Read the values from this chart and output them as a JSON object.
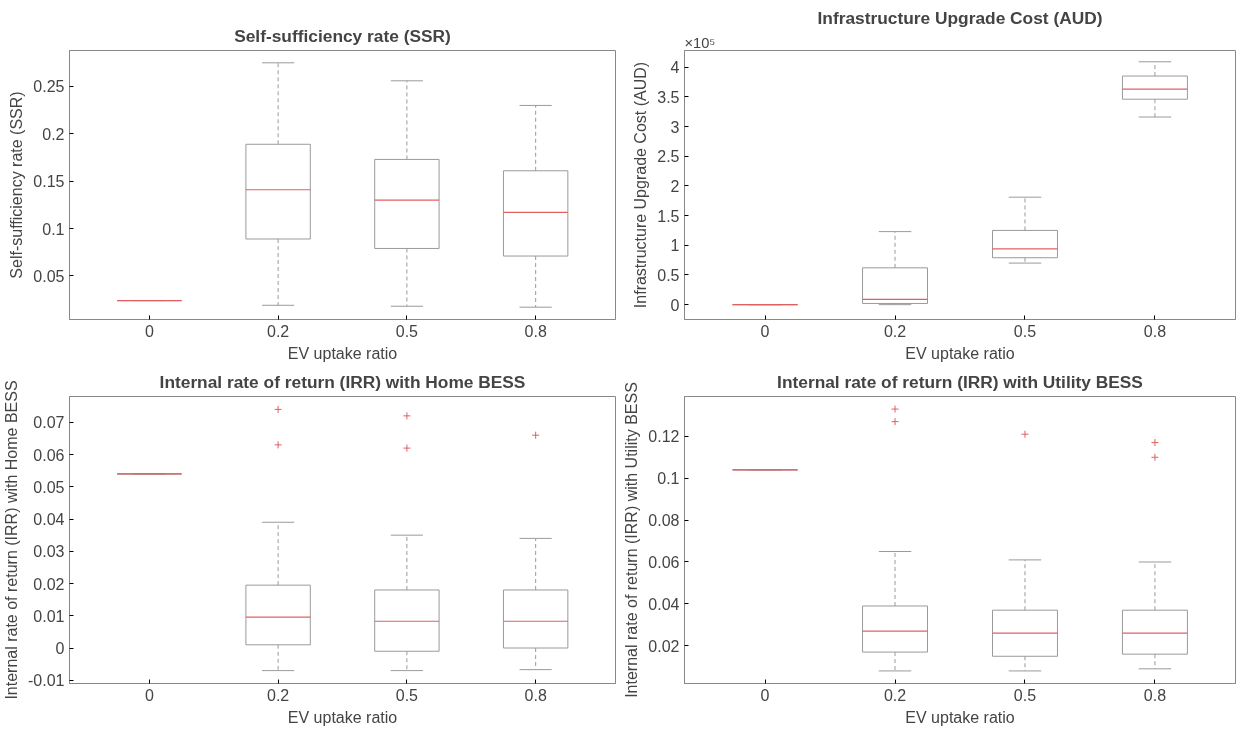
{
  "chart_data": [
    {
      "type": "box",
      "title": "Self-sufficiency rate (SSR)",
      "xlabel": "EV uptake ratio",
      "ylabel": "Self-sufficiency rate (SSR)",
      "categories": [
        "0",
        "0.2",
        "0.5",
        "0.8"
      ],
      "color": "#9a9a9a",
      "ylim": [
        0.004,
        0.288
      ],
      "yticks": [
        0.05,
        0.1,
        0.15,
        0.2,
        0.25
      ],
      "boxes": [
        {
          "low": 0.024,
          "q1": 0.024,
          "median": 0.024,
          "q3": 0.024,
          "high": 0.024
        },
        {
          "low": 0.019,
          "q1": 0.089,
          "median": 0.141,
          "q3": 0.189,
          "high": 0.275
        },
        {
          "low": 0.018,
          "q1": 0.079,
          "median": 0.13,
          "q3": 0.173,
          "high": 0.256
        },
        {
          "low": 0.017,
          "q1": 0.071,
          "median": 0.117,
          "q3": 0.161,
          "high": 0.23
        }
      ]
    },
    {
      "type": "box",
      "title": "Infrastructure Upgrade Cost (AUD)",
      "xlabel": "EV uptake ratio",
      "ylabel": "Infrastructure Upgrade Cost (AUD)",
      "annotations": [
        "×10⁵"
      ],
      "categories": [
        "0",
        "0.2",
        "0.5",
        "0.8"
      ],
      "color": "#9a9a9a",
      "ylim": [
        -0.25,
        4.28
      ],
      "yticks": [
        0,
        0.5,
        1,
        1.5,
        2,
        2.5,
        3,
        3.5,
        4
      ],
      "boxes": [
        {
          "low": 0,
          "q1": 0,
          "median": 0,
          "q3": 0,
          "high": 0
        },
        {
          "low": 0,
          "q1": 0.02,
          "median": 0.09,
          "q3": 0.62,
          "high": 1.23
        },
        {
          "low": 0.7,
          "q1": 0.79,
          "median": 0.94,
          "q3": 1.25,
          "high": 1.81
        },
        {
          "low": 3.16,
          "q1": 3.46,
          "median": 3.63,
          "q3": 3.85,
          "high": 4.09
        }
      ]
    },
    {
      "type": "box",
      "title": "Internal rate of return (IRR) with Home BESS",
      "xlabel": "EV uptake ratio",
      "ylabel": "Internal rate of return (IRR) with Home BESS",
      "categories": [
        "0",
        "0.2",
        "0.5",
        "0.8"
      ],
      "color": "#9a9a9a",
      "marker": "cross",
      "ylim": [
        -0.011,
        0.078
      ],
      "yticks": [
        -0.01,
        0,
        0.01,
        0.02,
        0.03,
        0.04,
        0.05,
        0.06,
        0.07
      ],
      "boxes": [
        {
          "low": 0.054,
          "q1": 0.054,
          "median": 0.054,
          "q3": 0.054,
          "high": 0.054
        },
        {
          "low": -0.007,
          "q1": 0.001,
          "median": 0.0096,
          "q3": 0.0195,
          "high": 0.039,
          "outliers": [
            0.074,
            0.063
          ]
        },
        {
          "low": -0.007,
          "q1": -0.001,
          "median": 0.0083,
          "q3": 0.018,
          "high": 0.035,
          "outliers": [
            0.072,
            0.062
          ]
        },
        {
          "low": -0.0067,
          "q1": 0,
          "median": 0.0083,
          "q3": 0.018,
          "high": 0.034,
          "outliers": [
            0.066
          ]
        }
      ]
    },
    {
      "type": "box",
      "title": "Internal rate of return (IRR) with Utility BESS",
      "xlabel": "EV uptake ratio",
      "ylabel": "Internal rate of return (IRR) with Utility BESS",
      "categories": [
        "0",
        "0.2",
        "0.5",
        "0.8"
      ],
      "color": "#9a9a9a",
      "marker": "cross",
      "ylim": [
        0.002,
        0.139
      ],
      "yticks": [
        0.02,
        0.04,
        0.06,
        0.08,
        0.1,
        0.12
      ],
      "boxes": [
        {
          "low": 0.104,
          "q1": 0.104,
          "median": 0.104,
          "q3": 0.104,
          "high": 0.104
        },
        {
          "low": 0.008,
          "q1": 0.017,
          "median": 0.027,
          "q3": 0.039,
          "high": 0.065,
          "outliers": [
            0.133,
            0.127
          ]
        },
        {
          "low": 0.008,
          "q1": 0.015,
          "median": 0.026,
          "q3": 0.037,
          "high": 0.061,
          "outliers": [
            0.121
          ]
        },
        {
          "low": 0.009,
          "q1": 0.016,
          "median": 0.026,
          "q3": 0.037,
          "high": 0.06,
          "outliers": [
            0.117,
            0.11
          ]
        }
      ]
    }
  ]
}
